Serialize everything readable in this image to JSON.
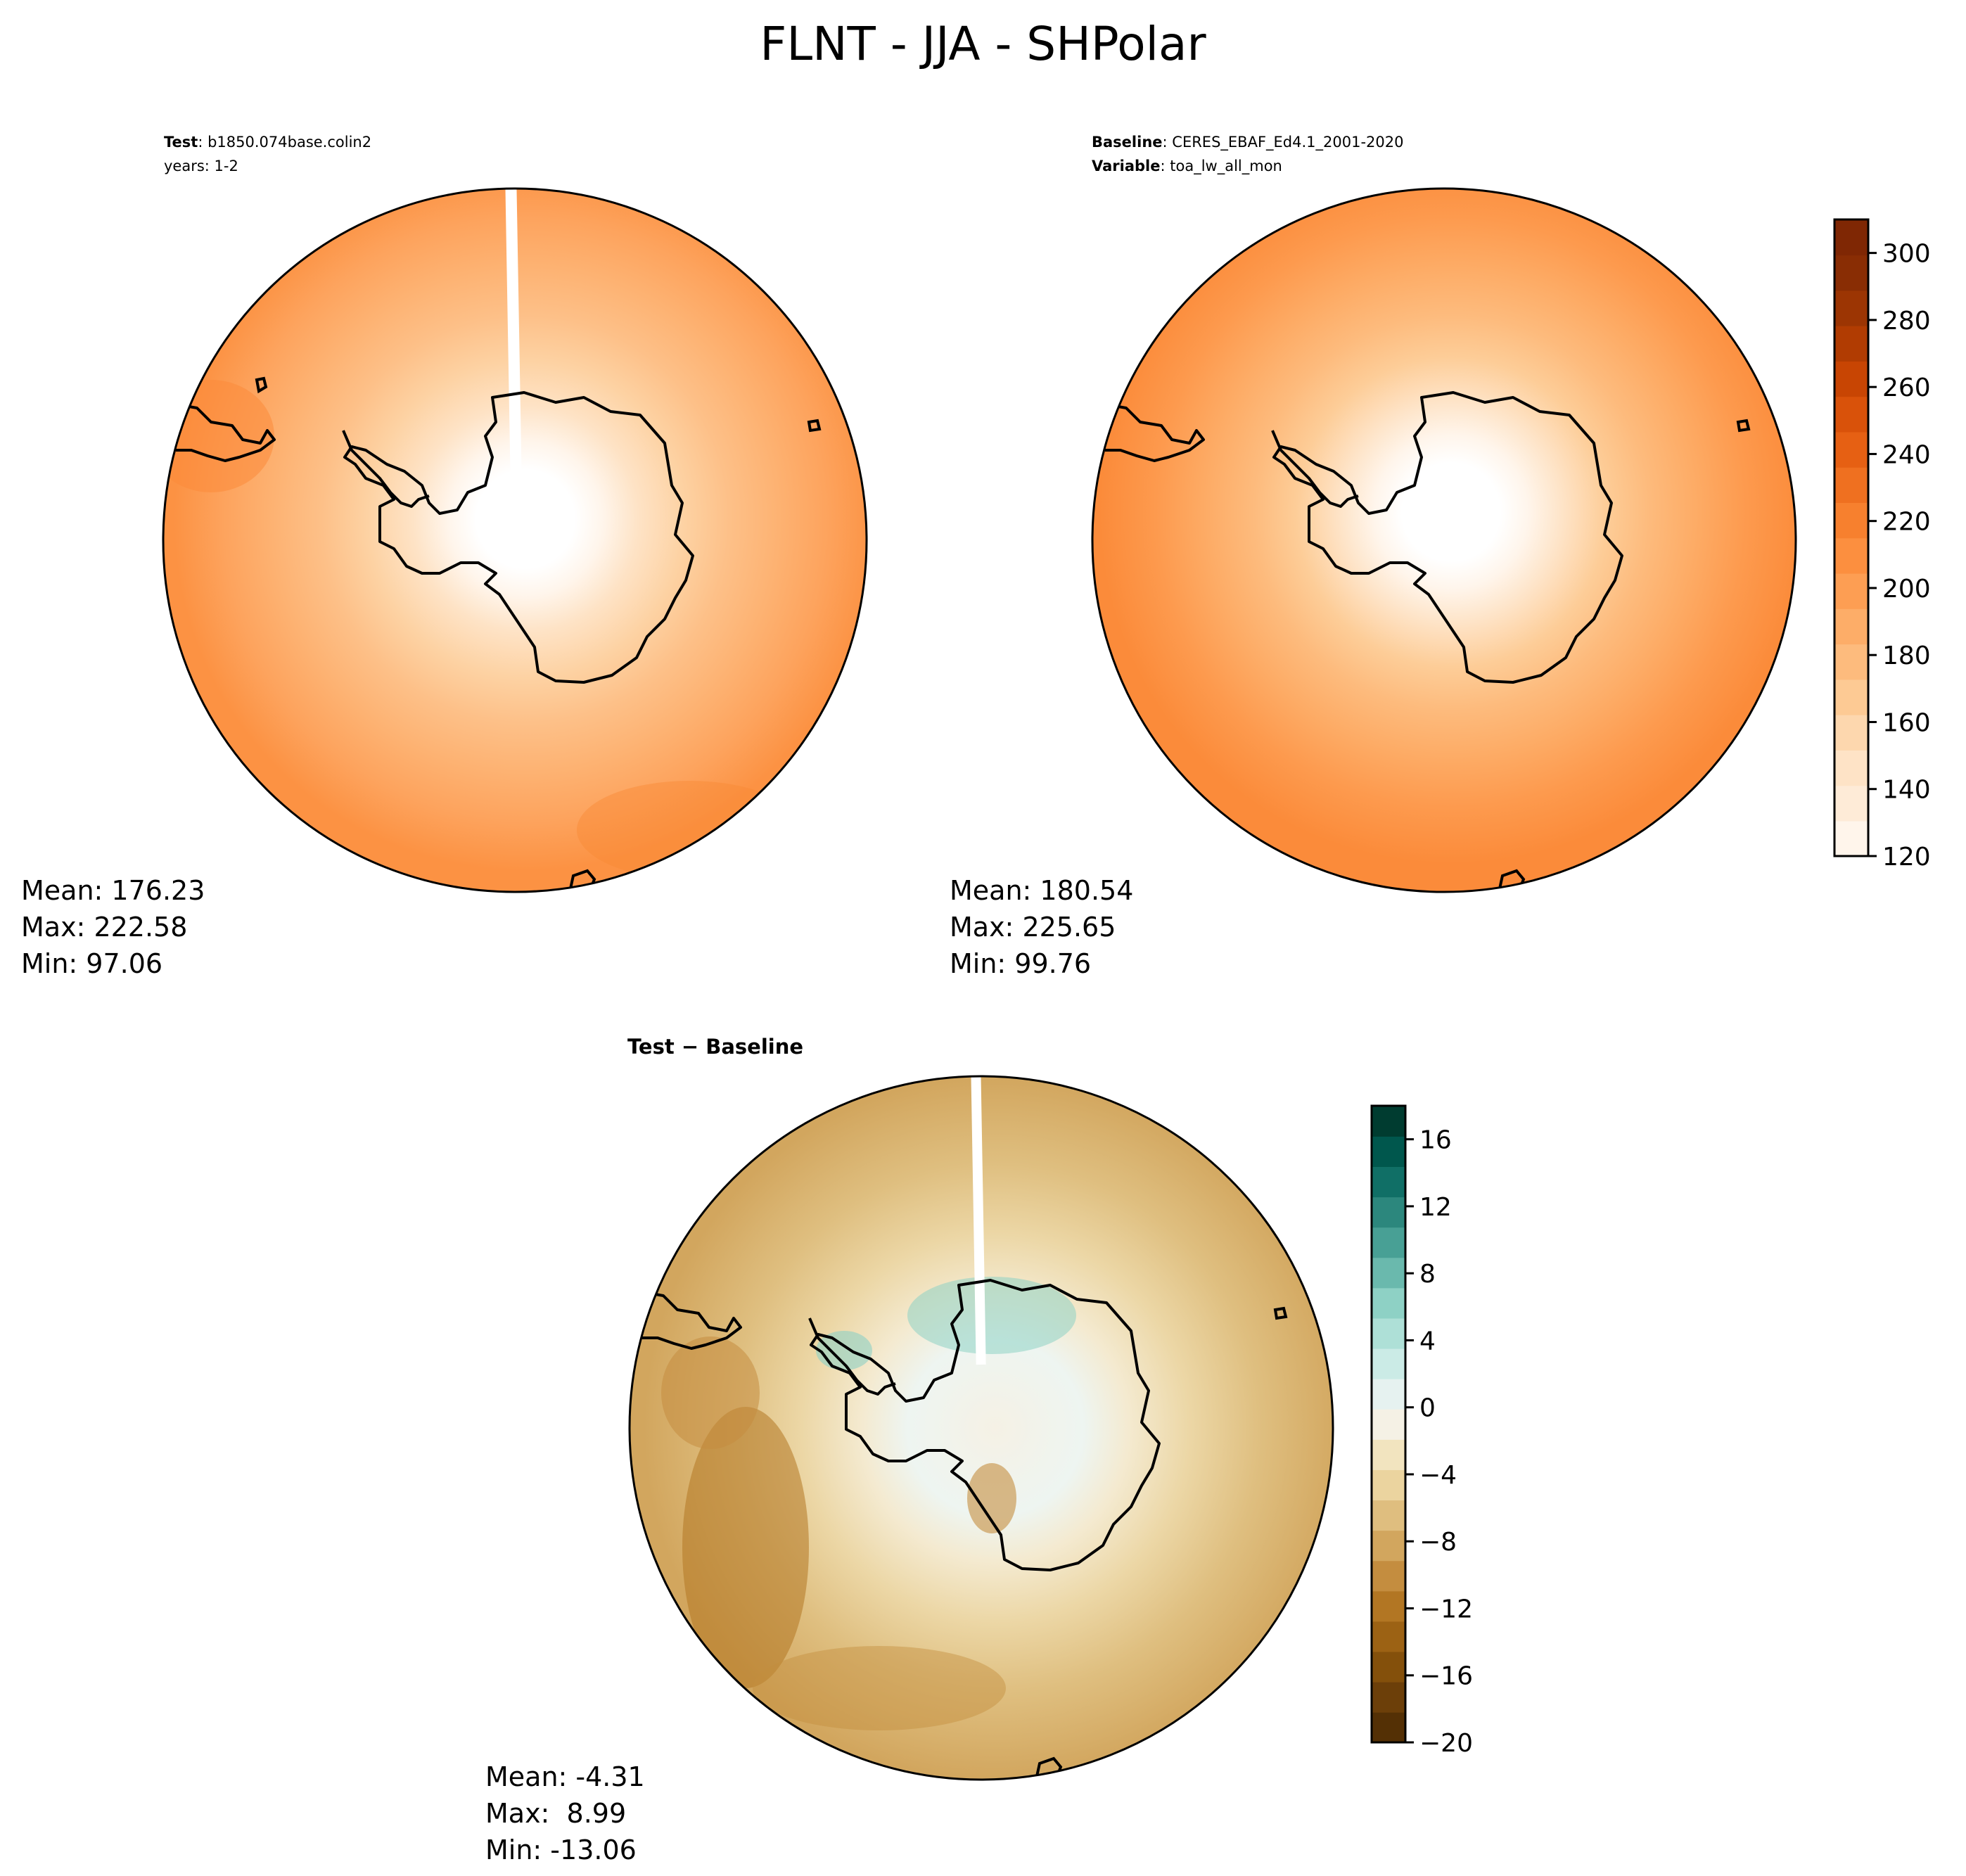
{
  "title": "FLNT - JJA - SHPolar",
  "chart_data": [
    {
      "type": "heatmap",
      "projection": "south-polar-stereographic",
      "panel": "test",
      "label_key": "Test",
      "label_value": "b1850.074base.colin2",
      "label_line2": "years: 1-2",
      "stats": {
        "mean_label": "Mean: 176.23",
        "max_label": "Max: 222.58",
        "min_label": "Min: 97.06"
      },
      "mean": 176.23,
      "max": 222.58,
      "min": 97.06,
      "radial_profile": {
        "r": [
          0,
          0.2,
          0.3,
          0.4,
          0.55,
          0.7,
          0.85,
          1.0
        ],
        "value": [
          120,
          135,
          150,
          160,
          175,
          190,
          200,
          205
        ]
      },
      "missing_meridian_strip": true
    },
    {
      "type": "heatmap",
      "projection": "south-polar-stereographic",
      "panel": "baseline",
      "label_key": "Baseline",
      "label_value": "CERES_EBAF_Ed4.1_2001-2020",
      "label_key2": "Variable",
      "label_value2": "toa_lw_all_mon",
      "stats": {
        "mean_label": "Mean: 180.54",
        "max_label": "Max: 225.65",
        "min_label": "Min: 99.76"
      },
      "mean": 180.54,
      "max": 225.65,
      "min": 99.76,
      "radial_profile": {
        "r": [
          0,
          0.2,
          0.3,
          0.4,
          0.55,
          0.7,
          0.85,
          1.0
        ],
        "value": [
          120,
          135,
          150,
          165,
          180,
          195,
          205,
          210
        ]
      },
      "missing_meridian_strip": false
    },
    {
      "type": "heatmap",
      "projection": "south-polar-stereographic",
      "panel": "difference",
      "label": "Test − Baseline",
      "stats": {
        "mean_label": "Mean: -4.31",
        "max_label": "Max:  8.99",
        "min_label": "Min: -13.06"
      },
      "mean": -4.31,
      "max": 8.99,
      "min": -13.06,
      "missing_meridian_strip": true
    }
  ],
  "colorbars": {
    "main": {
      "range": [
        120,
        310
      ],
      "ticks": [
        "120",
        "140",
        "160",
        "180",
        "200",
        "220",
        "240",
        "260",
        "280",
        "300"
      ],
      "colors": [
        "#fff5eb",
        "#feebd7",
        "#fee3c6",
        "#fdd7ae",
        "#fdca94",
        "#fdbb7d",
        "#fdad68",
        "#fd9e53",
        "#fc8f3f",
        "#f7802e",
        "#ef7020",
        "#e66013",
        "#d9520a",
        "#c84503",
        "#b13c02",
        "#9c3503",
        "#892d04",
        "#7f2704"
      ]
    },
    "diff": {
      "range": [
        -20,
        18
      ],
      "ticks": [
        "−20",
        "−16",
        "−12",
        "−8",
        "−4",
        "0",
        "4",
        "8",
        "12",
        "16"
      ],
      "colors": [
        "#543005",
        "#6c3f09",
        "#84500b",
        "#9c6214",
        "#b27623",
        "#c48d3f",
        "#d2a65e",
        "#dfbe7f",
        "#ebd49f",
        "#f2e4bf",
        "#f5f1e5",
        "#e6f2f0",
        "#cbebe6",
        "#aee0d7",
        "#8ed1c5",
        "#6ab9ad",
        "#48a095",
        "#2c877d",
        "#106f66",
        "#00574d",
        "#003c30"
      ]
    }
  }
}
